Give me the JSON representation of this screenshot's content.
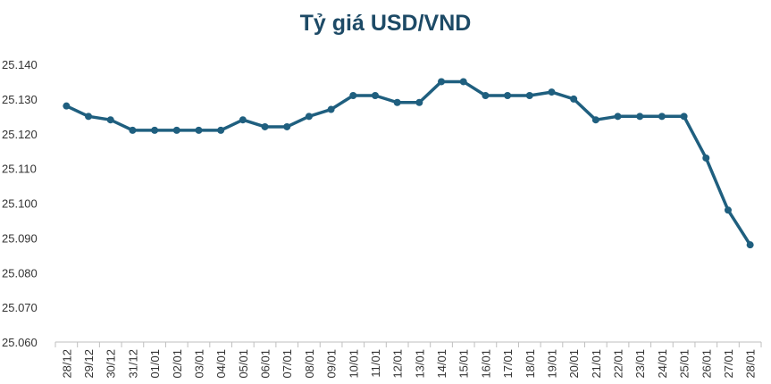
{
  "chart_data": {
    "type": "line",
    "title": "Tỷ giá USD/VND",
    "xlabel": "",
    "ylabel": "",
    "grid": false,
    "legend": "none",
    "ylim": [
      25060,
      25140
    ],
    "yticks": [
      25060,
      25070,
      25080,
      25090,
      25100,
      25110,
      25120,
      25130,
      25140
    ],
    "ytick_labels": [
      "25.060",
      "25.070",
      "25.080",
      "25.090",
      "25.100",
      "25.110",
      "25.120",
      "25.130",
      "25.140"
    ],
    "categories": [
      "28/12",
      "29/12",
      "30/12",
      "31/12",
      "01/01",
      "02/01",
      "03/01",
      "04/01",
      "05/01",
      "06/01",
      "07/01",
      "08/01",
      "09/01",
      "10/01",
      "11/01",
      "12/01",
      "13/01",
      "14/01",
      "15/01",
      "16/01",
      "17/01",
      "18/01",
      "19/01",
      "20/01",
      "21/01",
      "22/01",
      "23/01",
      "24/01",
      "25/01",
      "26/01",
      "27/01",
      "28/01"
    ],
    "series": [
      {
        "values": [
          25128,
          25125,
          25124,
          25121,
          25121,
          25121,
          25121,
          25121,
          25124,
          25122,
          25122,
          25125,
          25127,
          25131,
          25131,
          25129,
          25129,
          25135,
          25135,
          25131,
          25131,
          25131,
          25132,
          25130,
          25124,
          25125,
          25125,
          25125,
          25125,
          25113,
          25098,
          25088
        ]
      }
    ],
    "colors": {
      "line": "#1f5f7f",
      "marker": "#1f5f7f",
      "title": "#1d4a66",
      "axis": "#bfbfbf"
    }
  }
}
